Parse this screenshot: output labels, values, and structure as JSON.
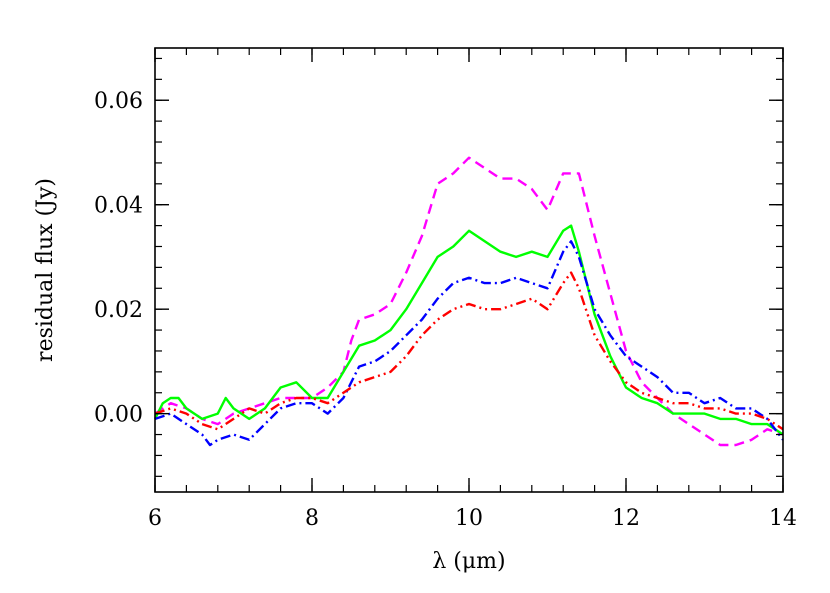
{
  "chart_data": {
    "type": "line",
    "title": "",
    "xlabel": "λ (μm)",
    "ylabel": "residual flux (Jy)",
    "xlim": [
      6,
      14
    ],
    "ylim": [
      -0.015,
      0.07
    ],
    "x_ticks": [
      6,
      8,
      10,
      12,
      14
    ],
    "x_tick_labels": [
      "6",
      "8",
      "10",
      "12",
      "14"
    ],
    "x_minor_step": 0.4,
    "y_ticks": [
      0.0,
      0.02,
      0.04,
      0.06
    ],
    "y_tick_labels": [
      "0.00",
      "0.02",
      "0.04",
      "0.06"
    ],
    "y_minor_step": 0.004,
    "grid": false,
    "series": [
      {
        "color": "#ff00ff",
        "dash": "dashed",
        "points": [
          [
            6.0,
            0.0
          ],
          [
            6.2,
            0.002
          ],
          [
            6.4,
            0.001
          ],
          [
            6.6,
            -0.001
          ],
          [
            6.8,
            -0.002
          ],
          [
            7.0,
            0.0
          ],
          [
            7.2,
            0.001
          ],
          [
            7.4,
            0.002
          ],
          [
            7.6,
            0.003
          ],
          [
            7.8,
            0.003
          ],
          [
            8.0,
            0.003
          ],
          [
            8.2,
            0.005
          ],
          [
            8.4,
            0.008
          ],
          [
            8.5,
            0.014
          ],
          [
            8.6,
            0.018
          ],
          [
            8.8,
            0.019
          ],
          [
            9.0,
            0.021
          ],
          [
            9.2,
            0.027
          ],
          [
            9.4,
            0.034
          ],
          [
            9.6,
            0.044
          ],
          [
            9.8,
            0.046
          ],
          [
            10.0,
            0.049
          ],
          [
            10.2,
            0.047
          ],
          [
            10.4,
            0.045
          ],
          [
            10.6,
            0.045
          ],
          [
            10.8,
            0.043
          ],
          [
            11.0,
            0.039
          ],
          [
            11.2,
            0.046
          ],
          [
            11.4,
            0.046
          ],
          [
            11.6,
            0.034
          ],
          [
            11.8,
            0.023
          ],
          [
            12.0,
            0.012
          ],
          [
            12.2,
            0.006
          ],
          [
            12.4,
            0.003
          ],
          [
            12.6,
            0.0
          ],
          [
            12.8,
            -0.002
          ],
          [
            13.0,
            -0.004
          ],
          [
            13.2,
            -0.006
          ],
          [
            13.4,
            -0.006
          ],
          [
            13.6,
            -0.005
          ],
          [
            13.8,
            -0.003
          ],
          [
            14.0,
            -0.004
          ]
        ]
      },
      {
        "color": "#00ff00",
        "dash": "solid",
        "points": [
          [
            6.0,
            -0.001
          ],
          [
            6.1,
            0.002
          ],
          [
            6.2,
            0.003
          ],
          [
            6.3,
            0.003
          ],
          [
            6.4,
            0.001
          ],
          [
            6.6,
            -0.001
          ],
          [
            6.8,
            0.0
          ],
          [
            6.9,
            0.003
          ],
          [
            7.0,
            0.001
          ],
          [
            7.2,
            -0.001
          ],
          [
            7.4,
            0.001
          ],
          [
            7.6,
            0.005
          ],
          [
            7.8,
            0.006
          ],
          [
            8.0,
            0.003
          ],
          [
            8.2,
            0.003
          ],
          [
            8.4,
            0.008
          ],
          [
            8.6,
            0.013
          ],
          [
            8.8,
            0.014
          ],
          [
            9.0,
            0.016
          ],
          [
            9.2,
            0.02
          ],
          [
            9.4,
            0.025
          ],
          [
            9.6,
            0.03
          ],
          [
            9.8,
            0.032
          ],
          [
            10.0,
            0.035
          ],
          [
            10.2,
            0.033
          ],
          [
            10.4,
            0.031
          ],
          [
            10.6,
            0.03
          ],
          [
            10.8,
            0.031
          ],
          [
            11.0,
            0.03
          ],
          [
            11.2,
            0.035
          ],
          [
            11.3,
            0.036
          ],
          [
            11.4,
            0.031
          ],
          [
            11.6,
            0.019
          ],
          [
            11.8,
            0.011
          ],
          [
            12.0,
            0.005
          ],
          [
            12.2,
            0.003
          ],
          [
            12.4,
            0.002
          ],
          [
            12.6,
            0.0
          ],
          [
            12.8,
            0.0
          ],
          [
            13.0,
            0.0
          ],
          [
            13.2,
            -0.001
          ],
          [
            13.4,
            -0.001
          ],
          [
            13.6,
            -0.002
          ],
          [
            13.8,
            -0.002
          ],
          [
            14.0,
            -0.004
          ]
        ]
      },
      {
        "color": "#0000ff",
        "dash": "dashdot",
        "points": [
          [
            6.0,
            -0.001
          ],
          [
            6.2,
            0.0
          ],
          [
            6.4,
            -0.002
          ],
          [
            6.6,
            -0.004
          ],
          [
            6.7,
            -0.006
          ],
          [
            6.8,
            -0.005
          ],
          [
            7.0,
            -0.004
          ],
          [
            7.2,
            -0.005
          ],
          [
            7.4,
            -0.002
          ],
          [
            7.6,
            0.001
          ],
          [
            7.8,
            0.002
          ],
          [
            8.0,
            0.002
          ],
          [
            8.2,
            0.0
          ],
          [
            8.4,
            0.003
          ],
          [
            8.6,
            0.009
          ],
          [
            8.8,
            0.01
          ],
          [
            9.0,
            0.012
          ],
          [
            9.2,
            0.015
          ],
          [
            9.4,
            0.018
          ],
          [
            9.6,
            0.022
          ],
          [
            9.8,
            0.025
          ],
          [
            10.0,
            0.026
          ],
          [
            10.2,
            0.025
          ],
          [
            10.4,
            0.025
          ],
          [
            10.6,
            0.026
          ],
          [
            10.8,
            0.025
          ],
          [
            11.0,
            0.024
          ],
          [
            11.2,
            0.031
          ],
          [
            11.3,
            0.033
          ],
          [
            11.4,
            0.03
          ],
          [
            11.6,
            0.02
          ],
          [
            11.8,
            0.015
          ],
          [
            12.0,
            0.011
          ],
          [
            12.2,
            0.009
          ],
          [
            12.4,
            0.007
          ],
          [
            12.6,
            0.004
          ],
          [
            12.8,
            0.004
          ],
          [
            13.0,
            0.002
          ],
          [
            13.2,
            0.003
          ],
          [
            13.4,
            0.001
          ],
          [
            13.6,
            0.001
          ],
          [
            13.8,
            -0.001
          ],
          [
            14.0,
            -0.005
          ]
        ]
      },
      {
        "color": "#ff0000",
        "dash": "dashdotdot",
        "points": [
          [
            6.0,
            0.0
          ],
          [
            6.2,
            0.001
          ],
          [
            6.4,
            0.0
          ],
          [
            6.6,
            -0.002
          ],
          [
            6.8,
            -0.003
          ],
          [
            7.0,
            -0.001
          ],
          [
            7.2,
            0.001
          ],
          [
            7.4,
            0.0
          ],
          [
            7.6,
            0.002
          ],
          [
            7.8,
            0.003
          ],
          [
            8.0,
            0.003
          ],
          [
            8.2,
            0.002
          ],
          [
            8.4,
            0.004
          ],
          [
            8.6,
            0.006
          ],
          [
            8.8,
            0.007
          ],
          [
            9.0,
            0.008
          ],
          [
            9.2,
            0.011
          ],
          [
            9.4,
            0.015
          ],
          [
            9.6,
            0.018
          ],
          [
            9.8,
            0.02
          ],
          [
            10.0,
            0.021
          ],
          [
            10.2,
            0.02
          ],
          [
            10.4,
            0.02
          ],
          [
            10.6,
            0.021
          ],
          [
            10.8,
            0.022
          ],
          [
            11.0,
            0.02
          ],
          [
            11.2,
            0.025
          ],
          [
            11.3,
            0.027
          ],
          [
            11.4,
            0.024
          ],
          [
            11.6,
            0.015
          ],
          [
            11.8,
            0.01
          ],
          [
            12.0,
            0.006
          ],
          [
            12.2,
            0.004
          ],
          [
            12.4,
            0.003
          ],
          [
            12.6,
            0.002
          ],
          [
            12.8,
            0.002
          ],
          [
            13.0,
            0.001
          ],
          [
            13.2,
            0.001
          ],
          [
            13.4,
            0.0
          ],
          [
            13.6,
            0.0
          ],
          [
            13.8,
            -0.001
          ],
          [
            14.0,
            -0.003
          ]
        ]
      }
    ]
  }
}
